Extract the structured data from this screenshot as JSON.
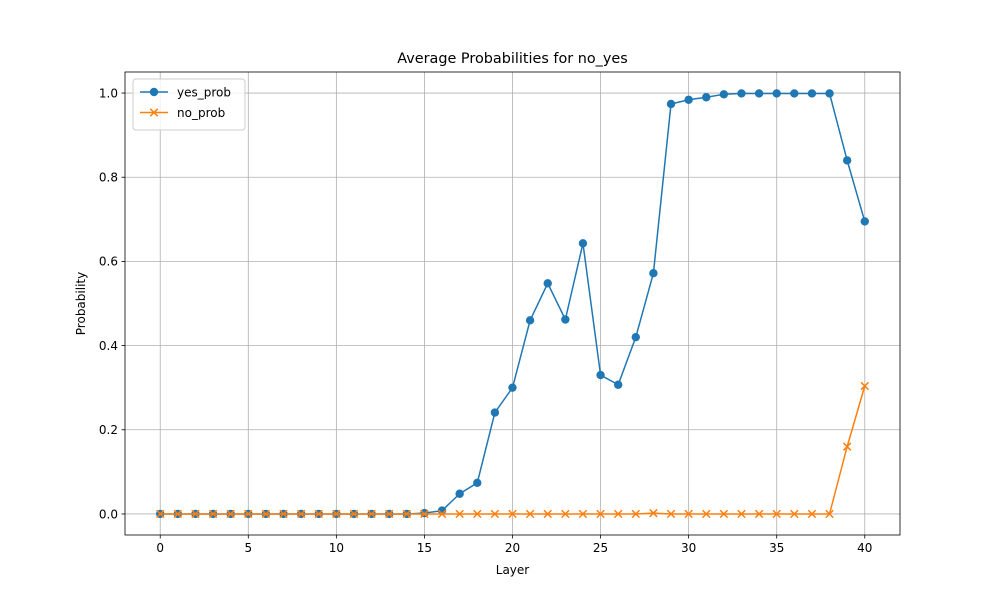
{
  "chart_data": {
    "type": "line",
    "title": "Average Probabilities for no_yes",
    "xlabel": "Layer",
    "ylabel": "Probability",
    "xlim": [
      -2,
      42
    ],
    "ylim": [
      -0.05,
      1.05
    ],
    "xticks": [
      0,
      5,
      10,
      15,
      20,
      25,
      30,
      35,
      40
    ],
    "yticks": [
      0.0,
      0.2,
      0.4,
      0.6,
      0.8,
      1.0
    ],
    "ytick_labels": [
      "0.0",
      "0.2",
      "0.4",
      "0.6",
      "0.8",
      "1.0"
    ],
    "grid": true,
    "legend_position": "upper-left",
    "x": [
      0,
      1,
      2,
      3,
      4,
      5,
      6,
      7,
      8,
      9,
      10,
      11,
      12,
      13,
      14,
      15,
      16,
      17,
      18,
      19,
      20,
      21,
      22,
      23,
      24,
      25,
      26,
      27,
      28,
      29,
      30,
      31,
      32,
      33,
      34,
      35,
      36,
      37,
      38,
      39,
      40
    ],
    "series": [
      {
        "name": "yes_prob",
        "color": "#1f77b4",
        "marker": "circle",
        "values": [
          0,
          0,
          0,
          0,
          0,
          0,
          0,
          0,
          0,
          0,
          0,
          0,
          0,
          0,
          0,
          0.002,
          0.008,
          0.048,
          0.074,
          0.241,
          0.3,
          0.46,
          0.548,
          0.462,
          0.643,
          0.33,
          0.307,
          0.42,
          0.572,
          0.974,
          0.984,
          0.99,
          0.997,
          0.999,
          0.999,
          0.999,
          0.999,
          0.999,
          0.999,
          0.84,
          0.695
        ]
      },
      {
        "name": "no_prob",
        "color": "#ff7f0e",
        "marker": "x",
        "values": [
          0,
          0,
          0,
          0,
          0,
          0,
          0,
          0,
          0,
          0,
          0,
          0,
          0,
          0,
          0,
          0,
          0,
          0,
          0,
          0,
          0,
          0,
          0,
          0,
          0,
          0,
          0,
          0,
          0.002,
          0,
          0,
          0,
          0,
          0,
          0,
          0,
          0,
          0,
          0,
          0.16,
          0.304
        ]
      }
    ]
  }
}
